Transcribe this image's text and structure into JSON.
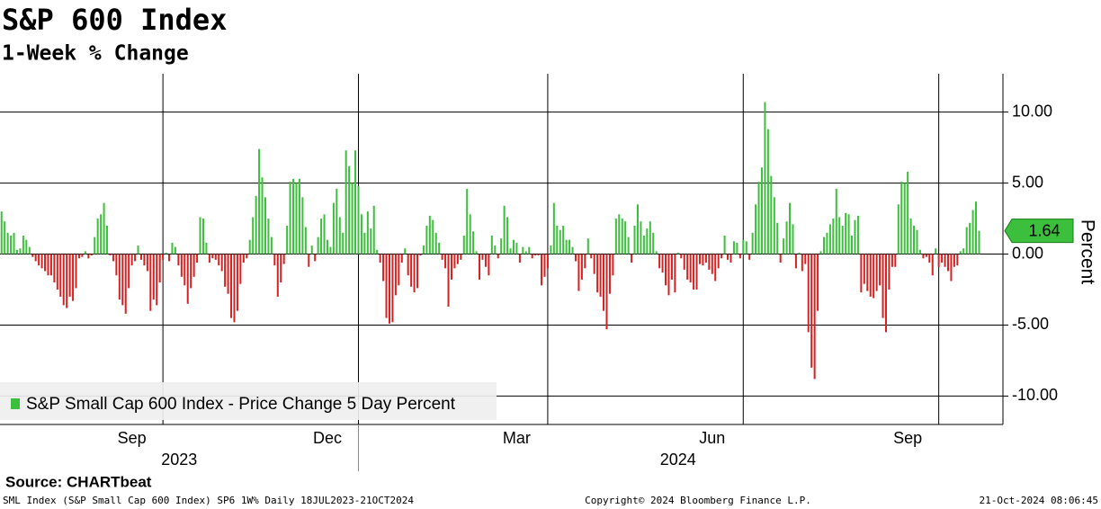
{
  "chart_data": {
    "type": "bar",
    "title": "S&P 600 Index",
    "subtitle": "1-Week % Change",
    "y_label": "Percent",
    "source": "Source: CHARTbeat",
    "footer_left": "SML Index (S&P Small Cap 600 Index) SP6 1W% Daily 18JUL2023-21OCT2024",
    "footer_center": "Copyright© 2024 Bloomberg Finance L.P.",
    "footer_right": "21-Oct-2024 08:06:45",
    "years": [
      "2023",
      "2024"
    ],
    "categories": [
      null,
      null,
      null,
      null,
      null,
      null,
      null,
      null,
      null,
      null,
      null,
      null,
      null,
      null,
      null,
      null,
      null,
      null,
      null,
      null,
      null,
      null,
      null,
      null,
      null,
      null,
      null,
      null,
      null,
      null,
      null,
      null,
      null,
      null,
      null,
      null,
      null,
      null,
      null,
      null,
      null,
      null,
      "Sep",
      null,
      null,
      null,
      null,
      null,
      null,
      null,
      null,
      null,
      null,
      null,
      null,
      null,
      null,
      null,
      null,
      null,
      null,
      null,
      null,
      null,
      null,
      null,
      null,
      null,
      null,
      null,
      null,
      null,
      null,
      null,
      null,
      null,
      null,
      null,
      null,
      null,
      null,
      null,
      null,
      null,
      null,
      null,
      null,
      null,
      null,
      null,
      null,
      null,
      null,
      null,
      null,
      null,
      null,
      null,
      null,
      null,
      null,
      null,
      null,
      null,
      null,
      "Dec",
      null,
      null,
      null,
      null,
      null,
      null,
      null,
      null,
      null,
      null,
      null,
      null,
      null,
      null,
      null,
      null,
      null,
      null,
      null,
      null,
      null,
      null,
      null,
      null,
      null,
      null,
      null,
      null,
      null,
      null,
      null,
      null,
      null,
      null,
      null,
      null,
      null,
      null,
      null,
      null,
      null,
      null,
      null,
      null,
      null,
      null,
      null,
      null,
      null,
      null,
      null,
      null,
      null,
      null,
      null,
      null,
      null,
      null,
      null,
      null,
      "Mar",
      null,
      null,
      null,
      null,
      null,
      null,
      null,
      null,
      null,
      null,
      null,
      null,
      null,
      null,
      null,
      null,
      null,
      null,
      null,
      null,
      null,
      null,
      null,
      null,
      null,
      null,
      null,
      null,
      null,
      null,
      null,
      null,
      null,
      null,
      null,
      null,
      null,
      null,
      null,
      null,
      null,
      null,
      null,
      null,
      null,
      null,
      null,
      null,
      null,
      null,
      null,
      null,
      null,
      null,
      null,
      null,
      null,
      null,
      null,
      null,
      null,
      null,
      "Jun",
      null,
      null,
      null,
      null,
      null,
      null,
      null,
      null,
      null,
      null,
      null,
      null,
      null,
      null,
      null,
      null,
      null,
      null,
      null,
      null,
      null,
      null,
      null,
      null,
      null,
      null,
      null,
      null,
      null,
      null,
      null,
      null,
      null,
      null,
      null,
      null,
      null,
      null,
      null,
      null,
      null,
      null,
      null,
      null,
      null,
      null,
      null,
      null,
      null,
      null,
      null,
      null,
      null,
      null,
      null,
      null,
      null,
      null,
      null,
      null,
      null,
      null,
      "Sep",
      null,
      null,
      null,
      null,
      null,
      null,
      null,
      null,
      null,
      null,
      null,
      null,
      null,
      null,
      null,
      null,
      null,
      null,
      null,
      null,
      null,
      null,
      null
    ],
    "series": [
      {
        "name": "S&P Small Cap 600 Index - Price Change 5 Day Percent",
        "color": "#3cbf3c",
        "negative_color": "#d42121",
        "values": [
          3.0,
          2.3,
          1.5,
          1.3,
          1.5,
          0.3,
          0.4,
          1.3,
          1.0,
          0.5,
          -0.2,
          -0.5,
          -0.8,
          -1.0,
          -1.2,
          -1.5,
          -1.5,
          -2.0,
          -2.5,
          -3.0,
          -3.6,
          -3.8,
          -3.0,
          -3.3,
          -2.4,
          -0.3,
          -0.2,
          0.2,
          -0.3,
          -0.1,
          1.2,
          2.5,
          2.8,
          3.6,
          2.0,
          -0.1,
          -0.5,
          -1.5,
          -3.2,
          -3.6,
          -4.2,
          -2.4,
          -0.8,
          -0.5,
          0.6,
          -0.4,
          -0.8,
          -1.2,
          -4.0,
          -3.2,
          -3.6,
          -2.0,
          -0.4,
          0.1,
          -0.5,
          0.8,
          0.5,
          -0.8,
          -1.6,
          -2.2,
          -3.5,
          -2.4,
          -1.6,
          -0.6,
          2.6,
          2.5,
          0.8,
          -0.6,
          -0.3,
          -0.4,
          -0.8,
          -1.2,
          -2.3,
          -2.8,
          -4.5,
          -4.8,
          -4.0,
          -2.1,
          -0.6,
          -0.3,
          1.0,
          2.6,
          4.1,
          7.4,
          5.4,
          4.0,
          2.5,
          1.2,
          -0.8,
          -3.0,
          -2.0,
          -0.7,
          2.0,
          5.1,
          5.3,
          5.0,
          5.3,
          4.0,
          1.9,
          -0.9,
          0.6,
          -0.5,
          1.2,
          2.5,
          2.8,
          1.0,
          0.5,
          3.6,
          4.6,
          2.6,
          1.5,
          7.3,
          6.2,
          5.0,
          7.3,
          4.8,
          2.8,
          1.5,
          3.0,
          1.8,
          3.4,
          0.3,
          -0.6,
          -1.9,
          -4.5,
          -4.9,
          -4.8,
          -2.9,
          -2.2,
          -0.6,
          0.4,
          -1.5,
          -2.3,
          -2.7,
          -2.4,
          -0.1,
          0.6,
          2.0,
          2.7,
          2.4,
          1.5,
          0.8,
          -0.4,
          -1.0,
          -3.7,
          -1.8,
          -1.0,
          -0.7,
          -0.4,
          1.3,
          4.6,
          2.8,
          1.6,
          0.2,
          -1.8,
          -0.4,
          -0.9,
          -1.5,
          1.3,
          0.6,
          -0.3,
          1.1,
          3.4,
          2.6,
          0.4,
          1.0,
          0.8,
          -0.6,
          0.5,
          0.2,
          0.5,
          -0.3,
          -0.1,
          -0.1,
          -2.2,
          -1.6,
          -1.0,
          0.6,
          3.6,
          2.0,
          1.7,
          2.0,
          1.0,
          1.0,
          0.5,
          -0.5,
          -2.6,
          -1.8,
          -1.0,
          1.1,
          -0.3,
          -1.4,
          -2.7,
          -3.0,
          -4.0,
          -5.3,
          -2.8,
          -1.5,
          2.5,
          2.8,
          2.5,
          2.3,
          1.2,
          -0.6,
          2.0,
          3.5,
          2.3,
          1.3,
          1.8,
          2.3,
          1.5,
          0.2,
          -1.0,
          -1.3,
          -2.2,
          -2.9,
          -1.8,
          -2.7,
          0.1,
          -0.3,
          -1.1,
          -1.8,
          -2.0,
          -2.5,
          -2.5,
          -0.7,
          -0.8,
          -0.6,
          -1.1,
          -1.4,
          -1.9,
          -1.0,
          -0.3,
          1.3,
          -0.4,
          -0.6,
          0.9,
          0.8,
          -0.3,
          1.0,
          0.9,
          -0.4,
          1.5,
          3.5,
          5.1,
          6.1,
          10.7,
          8.8,
          5.5,
          4.0,
          2.2,
          -0.6,
          1.1,
          2.3,
          3.6,
          2.1,
          -1.0,
          0.1,
          -1.2,
          -0.7,
          -5.5,
          -8.0,
          -8.8,
          -4.0,
          0.2,
          1.2,
          1.5,
          2.1,
          2.5,
          4.6,
          2.6,
          2.0,
          2.9,
          2.8,
          1.3,
          2.4,
          2.7,
          -2.7,
          -2.1,
          -2.6,
          -3.0,
          -3.1,
          -2.6,
          -2.2,
          -4.5,
          -5.5,
          -2.5,
          -0.9,
          -0.9,
          3.5,
          5.1,
          5.0,
          5.8,
          2.5,
          2.0,
          1.7,
          0.3,
          -0.3,
          -0.2,
          -0.6,
          -1.5,
          0.4,
          -0.9,
          -0.6,
          -0.9,
          -1.2,
          -1.9,
          -0.9,
          -0.8,
          0.2,
          0.4,
          1.9,
          2.2,
          3.1,
          3.7,
          1.64
        ]
      }
    ],
    "ylim": [
      -12,
      12.7
    ],
    "yticks": [
      {
        "value": 10,
        "label": "10.00"
      },
      {
        "value": 5,
        "label": "5.00"
      },
      {
        "value": 0,
        "label": "0.00"
      },
      {
        "value": -5,
        "label": "-5.00"
      },
      {
        "value": -10,
        "label": "-10.00"
      }
    ],
    "grid": true,
    "legend": "lower left"
  }
}
